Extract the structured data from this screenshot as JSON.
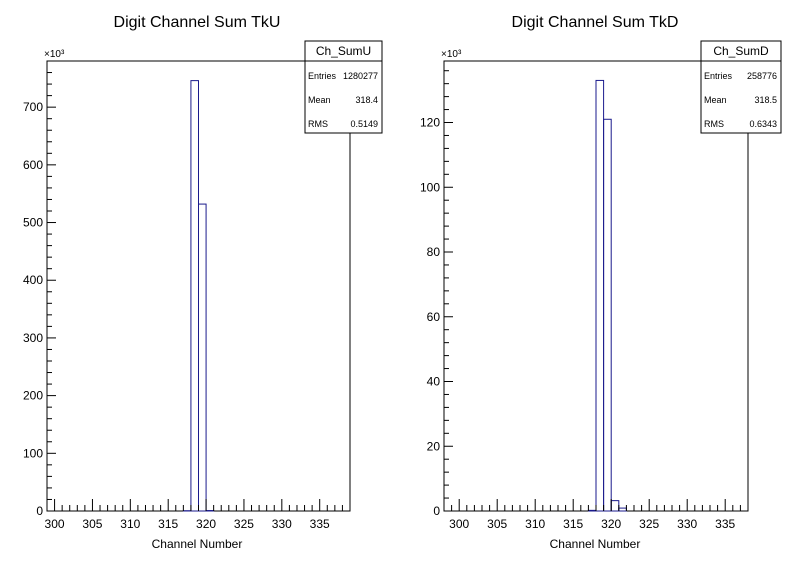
{
  "chart_data": [
    {
      "type": "bar",
      "title": "Digit Channel Sum TkU",
      "xlabel": "Channel Number",
      "ylabel": "",
      "xlim": [
        299,
        339
      ],
      "ylim": [
        0,
        780000
      ],
      "y_multiplier_label": "×10³",
      "x_tick_labels": [
        "300",
        "305",
        "310",
        "315",
        "320",
        "325",
        "330",
        "335"
      ],
      "y_tick_labels": [
        "0",
        "100",
        "200",
        "300",
        "400",
        "500",
        "600",
        "700"
      ],
      "bin_width": 1,
      "bins": [
        {
          "x": 317,
          "value": 500
        },
        {
          "x": 318,
          "value": 746000
        },
        {
          "x": 319,
          "value": 532000
        },
        {
          "x": 320,
          "value": 800
        }
      ],
      "grid": false,
      "legend_position": "top-right",
      "stats": {
        "name": "Ch_SumU",
        "rows": [
          {
            "label": "Entries",
            "value": "1280277"
          },
          {
            "label": "Mean",
            "value": "318.4"
          },
          {
            "label": "RMS",
            "value": "0.5149"
          }
        ]
      }
    },
    {
      "type": "bar",
      "title": "Digit Channel Sum TkD",
      "xlabel": "Channel Number",
      "ylabel": "",
      "xlim": [
        298,
        338
      ],
      "ylim": [
        0,
        139000
      ],
      "y_multiplier_label": "×10³",
      "x_tick_labels": [
        "300",
        "305",
        "310",
        "315",
        "320",
        "325",
        "330",
        "335"
      ],
      "y_tick_labels": [
        "0",
        "20",
        "40",
        "60",
        "80",
        "100",
        "120"
      ],
      "bin_width": 1,
      "bins": [
        {
          "x": 317,
          "value": 200
        },
        {
          "x": 318,
          "value": 133000
        },
        {
          "x": 319,
          "value": 121000
        },
        {
          "x": 320,
          "value": 3200
        },
        {
          "x": 321,
          "value": 900
        }
      ],
      "grid": false,
      "legend_position": "top-right",
      "stats": {
        "name": "Ch_SumD",
        "rows": [
          {
            "label": "Entries",
            "value": "258776"
          },
          {
            "label": "Mean",
            "value": "318.5"
          },
          {
            "label": "RMS",
            "value": "0.6343"
          }
        ]
      }
    }
  ]
}
